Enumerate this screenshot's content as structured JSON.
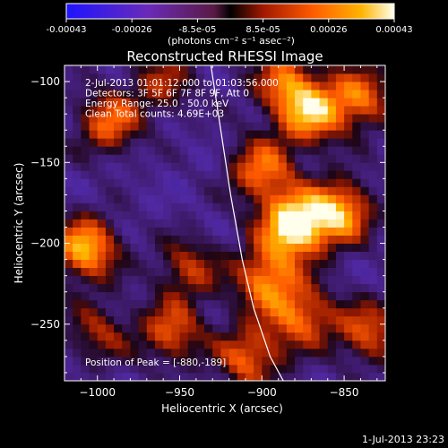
{
  "colorbar": {
    "ticks": [
      "-0.00043",
      "-0.00026",
      "-8.5e-05",
      "8.5e-05",
      "0.00026",
      "0.00043"
    ],
    "unit_label": "(photons cm⁻² s⁻¹ asec⁻²)",
    "vmin": -0.00043,
    "vmax": 0.00043
  },
  "chart_data": {
    "type": "heatmap",
    "title": "Reconstructed RHESSI Image",
    "xlabel": "Heliocentric X (arcsec)",
    "ylabel": "Heliocentric Y (arcsec)",
    "xlim": [
      -1020,
      -825
    ],
    "ylim": [
      -285,
      -90
    ],
    "x_ticks": [
      -1000,
      -950,
      -900,
      -850
    ],
    "y_ticks": [
      -100,
      -150,
      -200,
      -250
    ],
    "x_tick_labels": [
      "−1000",
      "−950",
      "−900",
      "−850"
    ],
    "y_tick_labels": [
      "−100",
      "−150",
      "−200",
      "−250"
    ],
    "info_lines": [
      " 2-Jul-2013 01:01:12.000 to 01:03:56.000",
      "Detectors: 3F 5F 6F 7F 8F 9F, Att 0",
      "Energy Range: 25.0 - 50.0 keV",
      "Clean    Total counts: 4.69E+03"
    ],
    "peak_label": "Position of Peak = [-880,-189]",
    "peak": [
      -880,
      -189
    ],
    "limb_curve": [
      [
        -931,
        -90
      ],
      [
        -925,
        -130
      ],
      [
        -919,
        -170
      ],
      [
        -912,
        -210
      ],
      [
        -905,
        -240
      ],
      [
        -895,
        -270
      ],
      [
        -887,
        -285
      ]
    ],
    "bright_spots": [
      {
        "x": -880,
        "y": -189,
        "intensity": 1.0
      },
      {
        "x": -1007,
        "y": -203,
        "intensity": 0.8
      },
      {
        "x": -993,
        "y": -125,
        "intensity": 0.6
      },
      {
        "x": -870,
        "y": -120,
        "intensity": 0.7
      },
      {
        "x": -852,
        "y": -180,
        "intensity": 0.75
      },
      {
        "x": -900,
        "y": -155,
        "intensity": 0.6
      },
      {
        "x": -898,
        "y": -222,
        "intensity": 0.65
      },
      {
        "x": -875,
        "y": -245,
        "intensity": 0.6
      },
      {
        "x": -945,
        "y": -215,
        "intensity": 0.45
      },
      {
        "x": -955,
        "y": -255,
        "intensity": 0.55
      },
      {
        "x": -835,
        "y": -255,
        "intensity": 0.55
      },
      {
        "x": -908,
        "y": -270,
        "intensity": 0.6
      },
      {
        "x": -1000,
        "y": -255,
        "intensity": 0.4
      },
      {
        "x": -960,
        "y": -100,
        "intensity": 0.4
      },
      {
        "x": -840,
        "y": -110,
        "intensity": 0.6
      },
      {
        "x": -885,
        "y": -100,
        "intensity": 0.55
      }
    ]
  },
  "footer": {
    "timestamp": "1-Jul-2013 23:23"
  }
}
